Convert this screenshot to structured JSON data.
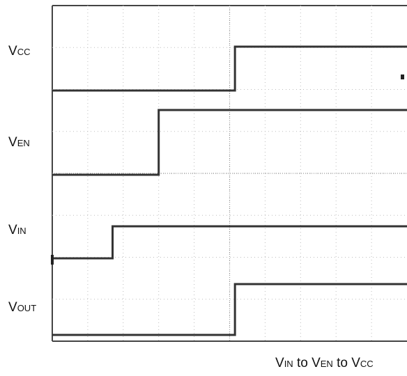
{
  "chart_data": {
    "type": "line",
    "title": "",
    "caption": {
      "parts": [
        {
          "main": "V",
          "sub": "IN"
        },
        {
          "main": " to V",
          "sub": "EN"
        },
        {
          "main": " to V",
          "sub": "CC"
        }
      ]
    },
    "grid": true,
    "x": {
      "divisions": 10
    },
    "y": {
      "divisions": 8
    },
    "series": [
      {
        "name": "VCC",
        "label_main": "V",
        "label_sub": "CC",
        "low": 0,
        "high": 1,
        "step_at_div": 5.15
      },
      {
        "name": "VEN",
        "label_main": "V",
        "label_sub": "EN",
        "low": 0,
        "high": 1,
        "step_at_div": 3.0
      },
      {
        "name": "VIN",
        "label_main": "V",
        "label_sub": "IN",
        "low": 0,
        "high": 1,
        "step_at_div": 1.7
      },
      {
        "name": "VOUT",
        "label_main": "V",
        "label_sub": "OUT",
        "low": 0,
        "high": 1,
        "step_at_div": 5.15
      }
    ],
    "trace_color": "#333333",
    "grid_color": "#bdbdbd"
  }
}
